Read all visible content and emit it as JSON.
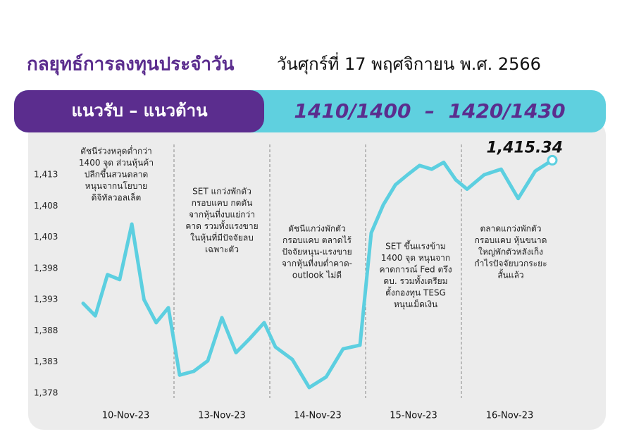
{
  "header": {
    "title": "กลยุทธ์การลงทุนประจำวัน",
    "date": "วันศุกร์ที่ 17 พฤศจิกายน พ.ศ. 2566"
  },
  "banner": {
    "label": "แนวรับ – แนวต้าน",
    "levels": "1410/1400  –  1420/1430"
  },
  "chart_data": {
    "type": "line",
    "color": "#5ccfe0",
    "ylim": [
      1378,
      1419
    ],
    "yticks": [
      {
        "value": 1378,
        "label": "1,378"
      },
      {
        "value": 1383,
        "label": "1,383"
      },
      {
        "value": 1388,
        "label": "1,388"
      },
      {
        "value": 1393,
        "label": "1,393"
      },
      {
        "value": 1398,
        "label": "1,398"
      },
      {
        "value": 1403,
        "label": "1,403"
      },
      {
        "value": 1408,
        "label": "1,408"
      },
      {
        "value": 1413,
        "label": "1,413"
      }
    ],
    "days": [
      {
        "label": "10-Nov-23",
        "values": [
          1392.4,
          1390.4,
          1397.0,
          1396.2,
          1405.1,
          1393.0,
          1389.3,
          1391.7
        ],
        "annotation": [
          "ดัชนีร่วงหลุดต่ำกว่า",
          "1400 จุด ส่วนหุ้นค้า",
          "ปลีกขึ้นสวนตลาด",
          "หนุนจากนโยบาย",
          "ดิจิทัลวอลเล็ต"
        ]
      },
      {
        "label": "13-Nov-23",
        "values": [
          1380.9,
          1381.5,
          1383.2,
          1390.1,
          1384.5,
          1386.8,
          1389.3
        ],
        "annotation": [
          "SET แกว่งพักตัว",
          "กรอบแคบ กดดัน",
          "จากหุ้นที่งบแย่กว่า",
          "คาด รวมทั้งแรงขาย",
          "ในหุ้นที่มีปัจจัยลบ",
          "เฉพาะตัว"
        ]
      },
      {
        "label": "14-Nov-23",
        "values": [
          1385.4,
          1383.4,
          1378.9,
          1380.6,
          1385.1,
          1385.7
        ],
        "annotation": [
          "ดัชนีแกว่งพักตัว",
          "กรอบแคบ ตลาดไร้",
          "ปัจจัยหนุน-แรงขาย",
          "จากหุ้นที่งบต่ำคาด-",
          "outlook ไม่ดี"
        ]
      },
      {
        "label": "15-Nov-23",
        "values": [
          1403.7,
          1408.2,
          1411.4,
          1413.0,
          1414.5,
          1413.9,
          1415.0,
          1412.2
        ],
        "annotation": [
          "SET ขึ้นแรงข้าม",
          "1400 จุด หนุนจาก",
          "คาดการณ์ Fed ตรึง",
          "ดบ. รวมทั้งเตรียม",
          "ตั้งกองทุน TESG",
          "หนุนเม็ดเงิน"
        ]
      },
      {
        "label": "16-Nov-23",
        "values": [
          1410.7,
          1413.0,
          1413.9,
          1409.2,
          1413.6,
          1415.34
        ],
        "value_labels": [
          null,
          null,
          null,
          null,
          null,
          "1,415.34"
        ],
        "annotation": [
          "ตลาดแกว่งพักตัว",
          "กรอบแคบ หุ้นขนาด",
          "ใหญ่พักตัวหลังเก็ง",
          "กำไรปัจจัยบวกระยะ",
          "สั้นแล้ว"
        ]
      }
    ]
  }
}
